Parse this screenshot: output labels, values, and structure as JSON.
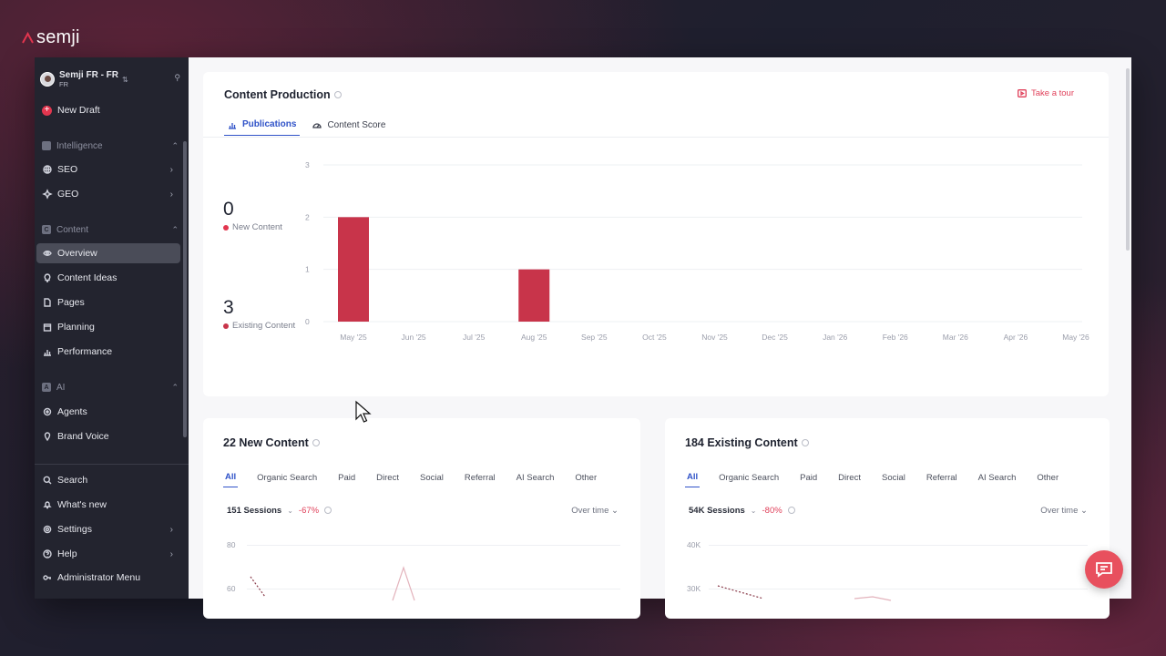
{
  "brand": {
    "name": "semji"
  },
  "sidebar": {
    "workspace": {
      "name": "Semji FR - FR",
      "sub": "FR"
    },
    "new_draft": "New Draft",
    "sections": {
      "intelligence": "Intelligence",
      "content": "Content",
      "ai": "AI"
    },
    "intelligence_items": [
      "SEO",
      "GEO"
    ],
    "content_items": [
      "Overview",
      "Content Ideas",
      "Pages",
      "Planning",
      "Performance"
    ],
    "ai_items": [
      "Agents",
      "Brand Voice"
    ],
    "bottom_items": [
      "Search",
      "What's new",
      "Settings",
      "Help",
      "Administrator Menu"
    ]
  },
  "content_production": {
    "title": "Content Production",
    "take_tour": "Take a tour",
    "tabs": [
      "Publications",
      "Content Score"
    ],
    "new_content": {
      "value": "0",
      "label": "New Content"
    },
    "existing_content": {
      "value": "3",
      "label": "Existing Content"
    }
  },
  "chart_data": {
    "type": "bar",
    "categories": [
      "May '25",
      "Jun '25",
      "Jul '25",
      "Aug '25",
      "Sep '25",
      "Oct '25",
      "Nov '25",
      "Dec '25",
      "Jan '26",
      "Feb '26",
      "Mar '26",
      "Apr '26",
      "May '26"
    ],
    "series": [
      {
        "name": "New Content",
        "values": [
          0,
          0,
          0,
          0,
          0,
          0,
          0,
          0,
          0,
          0,
          0,
          0,
          0
        ]
      },
      {
        "name": "Existing Content",
        "values": [
          2,
          0,
          0,
          1,
          0,
          0,
          0,
          0,
          0,
          0,
          0,
          0,
          0
        ]
      }
    ],
    "ylim": [
      0,
      3
    ],
    "yticks": [
      "0",
      "1",
      "2",
      "3"
    ],
    "bar_color": "#c8344a",
    "grid": true
  },
  "new_content_card": {
    "title": "22 New Content",
    "filters": [
      "All",
      "Organic Search",
      "Paid",
      "Direct",
      "Social",
      "Referral",
      "AI Search",
      "Other"
    ],
    "sessions": "151 Sessions",
    "delta": "-67%",
    "mode": "Over time",
    "yticks": [
      "80",
      "60"
    ]
  },
  "existing_content_card": {
    "title": "184 Existing Content",
    "filters": [
      "All",
      "Organic Search",
      "Paid",
      "Direct",
      "Social",
      "Referral",
      "AI Search",
      "Other"
    ],
    "sessions": "54K Sessions",
    "delta": "-80%",
    "mode": "Over time",
    "yticks": [
      "40K",
      "30K"
    ]
  },
  "colors": {
    "accent": "#2f52c8",
    "brand_red": "#e2364f",
    "sidebar_bg": "#23242f"
  }
}
